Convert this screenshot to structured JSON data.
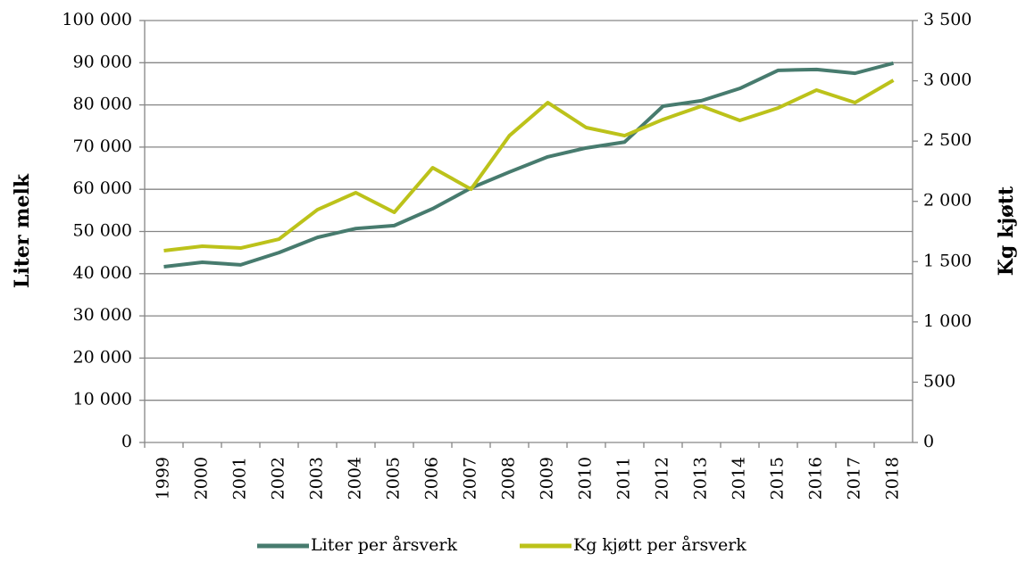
{
  "chart_data": {
    "type": "line",
    "categories": [
      "1999",
      "2000",
      "2001",
      "2002",
      "2003",
      "2004",
      "2005",
      "2006",
      "2007",
      "2008",
      "2009",
      "2010",
      "2011",
      "2012",
      "2013",
      "2014",
      "2015",
      "2016",
      "2017",
      "2018"
    ],
    "series": [
      {
        "name": "Liter per årsverk",
        "color": "#477b6e",
        "values": [
          41650,
          42700,
          42100,
          45000,
          48600,
          50700,
          51400,
          55400,
          60300,
          64100,
          67700,
          69800,
          71200,
          79700,
          81000,
          83900,
          88200,
          88400,
          87500,
          89900
        ]
      },
      {
        "name": "Kg kjøtt per årsverk",
        "color": "#bcc21a",
        "axis": "y2",
        "values": [
          1591,
          1628,
          1613,
          1687,
          1931,
          2072,
          1909,
          2279,
          2101,
          2545,
          2819,
          2612,
          2545,
          2679,
          2790,
          2671,
          2775,
          2923,
          2819,
          3004
        ]
      }
    ],
    "ylabel": "Liter melk",
    "y2label": "Kg kjøtt",
    "ylim": [
      0,
      100000
    ],
    "yticks": [
      0,
      {
        "value": 10000,
        "label": "10 000"
      },
      {
        "value": 20000,
        "label": "20 000"
      },
      {
        "value": 30000,
        "label": "30 000"
      },
      {
        "value": 40000,
        "label": "40 000"
      },
      {
        "value": 50000,
        "label": "50 000"
      },
      {
        "value": 60000,
        "label": "60 000"
      },
      {
        "value": 70000,
        "label": "70 000"
      },
      {
        "value": 80000,
        "label": "80 000"
      },
      {
        "value": 90000,
        "label": "90 000"
      },
      {
        "value": 100000,
        "label": "100 000"
      }
    ],
    "y2lim": [
      0,
      3500
    ],
    "y2ticks": [
      0,
      500,
      {
        "value": 1000,
        "label": "1 000"
      },
      {
        "value": 1500,
        "label": "1 500"
      },
      {
        "value": 2000,
        "label": "2 000"
      },
      {
        "value": 2500,
        "label": "2 500"
      },
      {
        "value": 3000,
        "label": "3 000"
      },
      {
        "value": 3500,
        "label": "3 500"
      }
    ],
    "grid": true,
    "legend": "bottom"
  }
}
